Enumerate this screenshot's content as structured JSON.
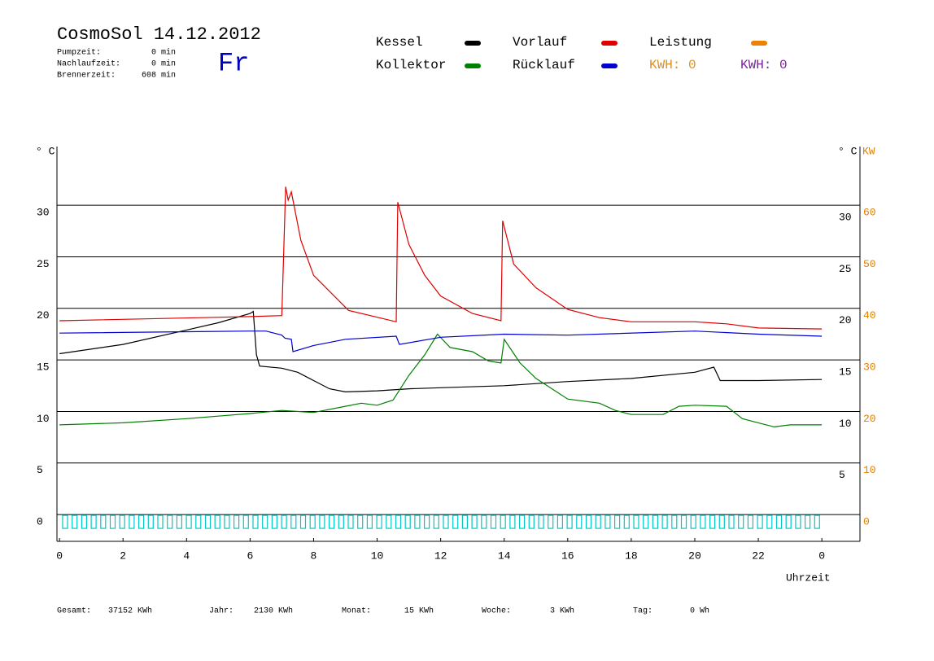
{
  "chart_data": {
    "type": "line",
    "title": "CosmoSol 14.12.2012",
    "day": "Fr",
    "info": [
      {
        "label": "Pumpzeit:",
        "value": "0 min"
      },
      {
        "label": "Nachlaufzeit:",
        "value": "0 min"
      },
      {
        "label": "Brennerzeit:",
        "value": "608 min"
      }
    ],
    "y_label": "° C",
    "y_label_right": "° C",
    "y2_label": "KW",
    "x_label": "Uhrzeit",
    "xlim": [
      -0.08,
      25.2
    ],
    "xticks": [
      0,
      2,
      4,
      6,
      8,
      10,
      12,
      14,
      16,
      18,
      20,
      22,
      {
        "value": 24,
        "label": "0"
      }
    ],
    "ylim": [
      -2.6,
      35.7
    ],
    "yticks": [
      0,
      5,
      10,
      15,
      20,
      25,
      30
    ],
    "yticks_right": [
      5,
      10,
      15,
      20,
      25,
      30
    ],
    "y2lim": [
      -5.2,
      71.4
    ],
    "y2ticks": [
      0,
      10,
      20,
      30,
      40,
      50,
      60
    ],
    "grid": true,
    "series": [
      {
        "name": "Kessel",
        "color": "#000000",
        "x": [
          0,
          2,
          4,
          5,
          6,
          6.1,
          6.2,
          6.3,
          7,
          7.5,
          8,
          8.5,
          9,
          10,
          11,
          12,
          14,
          16,
          18,
          20,
          20.6,
          20.8,
          22,
          24
        ],
        "values": [
          15.6,
          16.5,
          17.9,
          18.6,
          19.5,
          19.7,
          15.5,
          14.4,
          14.2,
          13.8,
          13.0,
          12.2,
          11.9,
          12.0,
          12.2,
          12.3,
          12.5,
          12.9,
          13.2,
          13.8,
          14.3,
          13.0,
          13.0,
          13.1
        ]
      },
      {
        "name": "Kollektor",
        "color": "#008000",
        "x": [
          0,
          2,
          4,
          6,
          7,
          8,
          9,
          9.5,
          10,
          10.5,
          11,
          11.5,
          11.9,
          12.3,
          13,
          13.5,
          13.9,
          14.0,
          14.5,
          15,
          16,
          17,
          17.5,
          18,
          19,
          19.5,
          20,
          21,
          21.5,
          22,
          22.5,
          23,
          24
        ],
        "values": [
          8.7,
          8.9,
          9.3,
          9.8,
          10.1,
          9.9,
          10.5,
          10.8,
          10.6,
          11.1,
          13.5,
          15.5,
          17.5,
          16.2,
          15.8,
          14.9,
          14.7,
          17.0,
          14.7,
          13.2,
          11.2,
          10.8,
          10.1,
          9.7,
          9.7,
          10.5,
          10.6,
          10.5,
          9.3,
          8.9,
          8.5,
          8.7,
          8.7
        ]
      },
      {
        "name": "Vorlauf",
        "color": "#e00000",
        "x": [
          0,
          6,
          7.0,
          7.12,
          7.2,
          7.3,
          7.6,
          8,
          9.1,
          10.6,
          10.65,
          11,
          11.5,
          12,
          13,
          13.9,
          13.95,
          14.3,
          15,
          16,
          17,
          18,
          20,
          21,
          22,
          24
        ],
        "values": [
          18.8,
          19.2,
          19.3,
          31.8,
          30.5,
          31.3,
          26.6,
          23.2,
          19.8,
          18.7,
          30.3,
          26.2,
          23.2,
          21.2,
          19.5,
          18.8,
          28.5,
          24.3,
          22.0,
          19.9,
          19.1,
          18.7,
          18.7,
          18.5,
          18.1,
          18.0
        ]
      },
      {
        "name": "Rücklauf",
        "color": "#0000d0",
        "x": [
          0,
          6,
          6.5,
          7.0,
          7.1,
          7.3,
          7.35,
          8,
          9,
          10.6,
          10.7,
          12,
          14,
          16,
          20,
          22,
          24
        ],
        "values": [
          17.6,
          17.8,
          17.8,
          17.4,
          17.1,
          17.0,
          15.8,
          16.4,
          17.0,
          17.3,
          16.5,
          17.2,
          17.5,
          17.4,
          17.8,
          17.5,
          17.3
        ]
      }
    ],
    "extra_legend": {
      "name": "Leistung",
      "color": "#f08000"
    },
    "kwh": [
      {
        "text": "KWH: 0",
        "color": "#e09020"
      },
      {
        "text": "KWH: 0",
        "color": "#8020a0"
      }
    ],
    "footer": [
      {
        "label": "Gesamt:",
        "value": "37152 KWh"
      },
      {
        "label": "Jahr:",
        "value": "2130 KWh"
      },
      {
        "label": "Monat:",
        "value": "15 KWh"
      },
      {
        "label": "Woche:",
        "value": "3 KWh"
      },
      {
        "label": "Tag:",
        "value": "0 Wh"
      }
    ]
  }
}
